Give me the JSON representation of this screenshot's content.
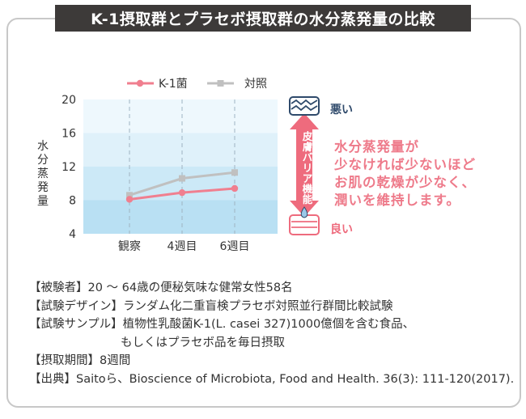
{
  "title": "K-1摂取群とプラセボ摂取群の水分蒸発量の比較",
  "chart_data": {
    "type": "line",
    "categories": [
      "観察",
      "4週目",
      "6週目"
    ],
    "series": [
      {
        "name": "K-1菌",
        "values": [
          8.1,
          8.9,
          9.4
        ],
        "color": "#f07f8f"
      },
      {
        "name": "対照",
        "values": [
          8.6,
          10.6,
          11.3
        ],
        "color": "#c0c0c0"
      }
    ],
    "ylabel": "水分蒸発量",
    "ylim": [
      4,
      20
    ],
    "yticks": [
      4,
      8,
      12,
      16,
      20
    ],
    "legend_position": "top",
    "grid": "vertical dashed"
  },
  "barrier": {
    "label": "皮膚バリア機能",
    "bad_label": "悪い",
    "good_label": "良い",
    "arrow_color": "#ee6b7d"
  },
  "description": [
    "水分蒸発量が",
    "少なければ少ないほど",
    "お肌の乾燥が少なく、",
    "潤いを維持します。"
  ],
  "info": {
    "subjects": "【被験者】20 ～ 64歳の便秘気味な健常女性58名",
    "design": "【試験デザイン】ランダム化二重盲検プラセボ対照並行群間比較試験",
    "sample_line1": "【試験サンプル】植物性乳酸菌K-1(L. casei 327)1000億個を含む食品、",
    "sample_line2": "もしくはプラセボ品を毎日摂取",
    "period": "【摂取期間】8週間",
    "source": "【出典】Saitoら、Bioscience of Microbiota, Food and Health. 36(3): 111-120(2017)."
  }
}
